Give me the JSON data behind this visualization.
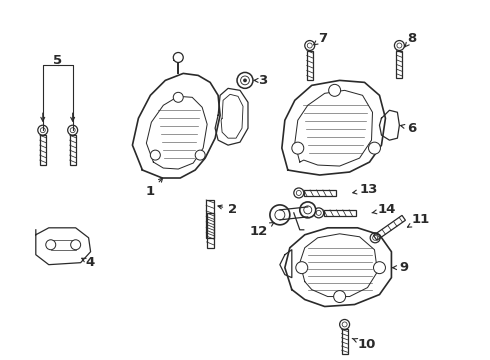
{
  "bg_color": "#ffffff",
  "fig_width": 4.9,
  "fig_height": 3.6,
  "dpi": 100,
  "lc": "#2a2a2a",
  "lw": 0.9
}
